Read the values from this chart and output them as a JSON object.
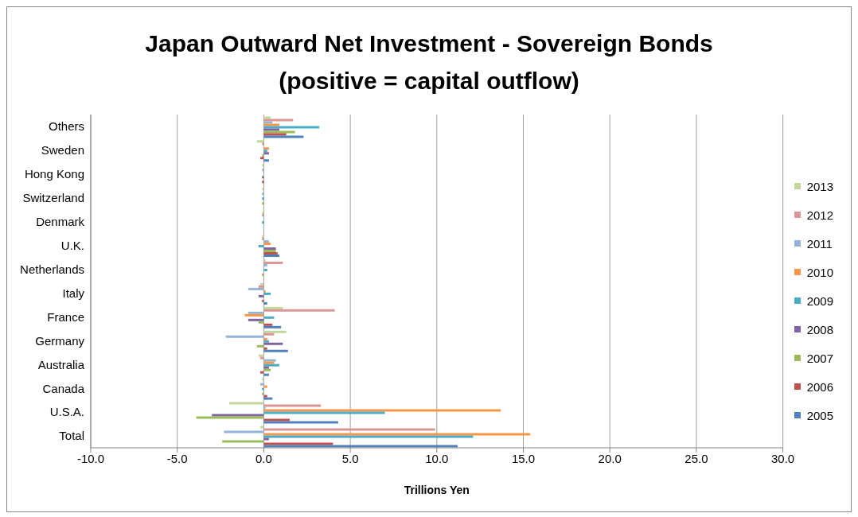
{
  "chart_data": {
    "type": "bar",
    "orientation": "horizontal",
    "title": "Japan Outward Net Investment - Sovereign Bonds",
    "subtitle": "(positive = capital outflow)",
    "xlabel": "Trillions Yen",
    "categories": [
      "Others",
      "Sweden",
      "Hong Kong",
      "Switzerland",
      "Denmark",
      "U.K.",
      "Netherlands",
      "Italy",
      "France",
      "Germany",
      "Australia",
      "Canada",
      "U.S.A.",
      "Total"
    ],
    "series": [
      {
        "name": "2013",
        "color": "#c3d69b",
        "values": [
          0.4,
          -0.4,
          -0.1,
          -0.1,
          -0.1,
          -0.1,
          0.1,
          -0.2,
          1.1,
          1.3,
          -0.3,
          -0.1,
          -2.0,
          -0.2
        ]
      },
      {
        "name": "2012",
        "color": "#d99694",
        "values": [
          1.7,
          -0.1,
          0,
          0,
          -0.1,
          -0.1,
          1.1,
          -0.3,
          4.1,
          0.6,
          -0.2,
          0,
          3.3,
          9.9
        ]
      },
      {
        "name": "2011",
        "color": "#95b3d7",
        "values": [
          0.5,
          0,
          -0.1,
          -0.1,
          0,
          0.3,
          0.2,
          -0.9,
          -0.9,
          -2.2,
          0.7,
          -0.2,
          0.1,
          -2.3
        ]
      },
      {
        "name": "2010",
        "color": "#f79646",
        "values": [
          0.9,
          0.3,
          0,
          0,
          0,
          0.4,
          0,
          0.1,
          -1.1,
          0.2,
          0.6,
          0.2,
          13.7,
          15.4
        ]
      },
      {
        "name": "2009",
        "color": "#4bacc6",
        "values": [
          3.2,
          0.2,
          0,
          -0.1,
          -0.1,
          -0.3,
          0.2,
          0.4,
          0.6,
          0.3,
          0.9,
          -0.1,
          7.0,
          12.1
        ]
      },
      {
        "name": "2008",
        "color": "#8064a2",
        "values": [
          0.9,
          0.3,
          -0.1,
          0,
          0,
          0.7,
          0,
          -0.3,
          -0.9,
          1.1,
          0.3,
          0,
          -3.0,
          0.3
        ]
      },
      {
        "name": "2007",
        "color": "#9bbb59",
        "values": [
          1.8,
          -0.1,
          0,
          -0.1,
          0,
          0.7,
          -0.1,
          0,
          -0.3,
          -0.4,
          0.4,
          -0.1,
          -3.9,
          -2.4
        ]
      },
      {
        "name": "2006",
        "color": "#c0504d",
        "values": [
          1.3,
          -0.2,
          -0.1,
          0,
          0,
          0.8,
          0,
          -0.1,
          0.5,
          0.2,
          -0.2,
          0.2,
          1.5,
          4.0
        ]
      },
      {
        "name": "2005",
        "color": "#4f81bd",
        "values": [
          2.3,
          0.3,
          0,
          0,
          0,
          0.9,
          0,
          0.2,
          1.0,
          1.4,
          0.3,
          0.5,
          4.3,
          11.2
        ]
      }
    ],
    "xlim": [
      -10,
      30
    ],
    "xticks": [
      {
        "value": -10,
        "label": "-10.0"
      },
      {
        "value": -5,
        "label": "-5.0"
      },
      {
        "value": 0,
        "label": "0.0"
      },
      {
        "value": 5,
        "label": "5.0"
      },
      {
        "value": 10,
        "label": "10.0"
      },
      {
        "value": 15,
        "label": "15.0"
      },
      {
        "value": 20,
        "label": "20.0"
      },
      {
        "value": 25,
        "label": "25.0"
      },
      {
        "value": 30,
        "label": "30.0"
      }
    ],
    "grid": "x",
    "legend": "right"
  }
}
